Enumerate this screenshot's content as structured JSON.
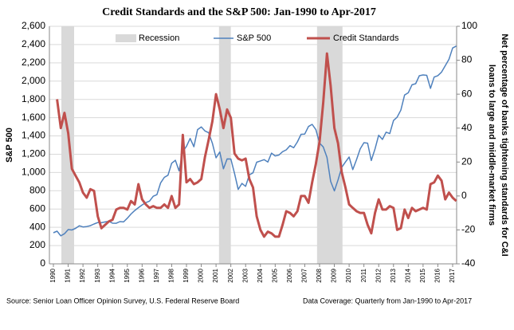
{
  "chart_data": {
    "type": "line",
    "title": "Credit Standards and the S&P 500: Jan-1990 to  Apr-2017",
    "y_label": "S&P 500",
    "y2_label": [
      "Net percentage of banks tightening standards for C&I",
      "loans to large and middle-market firms"
    ],
    "source": "Source: Senior Loan Officer Opinion Survey, U.S. Federal Reserve Board",
    "coverage": "Data Coverage: Quarterly from Jan-1990 to Apr-2017",
    "xlim": [
      1989.73,
      2017.27
    ],
    "xticks": [
      1990,
      1991,
      1992,
      1993,
      1994,
      1995,
      1996,
      1997,
      1998,
      1999,
      2000,
      2001,
      2002,
      2003,
      2004,
      2005,
      2006,
      2007,
      2008,
      2009,
      2010,
      2011,
      2012,
      2013,
      2014,
      2015,
      2016,
      2017
    ],
    "ylim": [
      0,
      2600
    ],
    "yticks": [
      0,
      200,
      400,
      600,
      800,
      {
        "value": 1000,
        "label": "1,000"
      },
      {
        "value": 1200,
        "label": "1,200"
      },
      {
        "value": 1400,
        "label": "1,400"
      },
      {
        "value": 1600,
        "label": "1,600"
      },
      {
        "value": 1800,
        "label": "1,800"
      },
      {
        "value": 2000,
        "label": "2,000"
      },
      {
        "value": 2200,
        "label": "2,200"
      },
      {
        "value": 2400,
        "label": "2,400"
      },
      {
        "value": 2600,
        "label": "2,600"
      }
    ],
    "y2lim": [
      -40,
      100
    ],
    "y2ticks": [
      -40,
      -20,
      0,
      20,
      40,
      60,
      80,
      100
    ],
    "grid": true,
    "legend": "top",
    "recession_name": "Recession",
    "recession_color": "#d9d9d9",
    "recessions": [
      [
        1990.54,
        1991.4
      ],
      [
        2001.2,
        2002.0
      ],
      [
        2007.83,
        2009.55
      ]
    ],
    "series": [
      {
        "name": "S&P 500",
        "color": "#4f81bd",
        "axis": "y",
        "width": 1.5,
        "x": [
          1990,
          1990.25,
          1990.5,
          1990.75,
          1991,
          1991.25,
          1991.5,
          1991.75,
          1992,
          1992.25,
          1992.5,
          1992.75,
          1993,
          1993.25,
          1993.5,
          1993.75,
          1994,
          1994.25,
          1994.5,
          1994.75,
          1995,
          1995.25,
          1995.5,
          1995.75,
          1996,
          1996.25,
          1996.5,
          1996.75,
          1997,
          1997.25,
          1997.5,
          1997.75,
          1998,
          1998.25,
          1998.5,
          1998.75,
          1999,
          1999.25,
          1999.5,
          1999.75,
          2000,
          2000.25,
          2000.5,
          2000.75,
          2001,
          2001.25,
          2001.5,
          2001.75,
          2002,
          2002.25,
          2002.5,
          2002.75,
          2003,
          2003.25,
          2003.5,
          2003.75,
          2004,
          2004.25,
          2004.5,
          2004.75,
          2005,
          2005.25,
          2005.5,
          2005.75,
          2006,
          2006.25,
          2006.5,
          2006.75,
          2007,
          2007.25,
          2007.5,
          2007.75,
          2008,
          2008.25,
          2008.5,
          2008.75,
          2009,
          2009.25,
          2009.5,
          2009.75,
          2010,
          2010.25,
          2010.5,
          2010.75,
          2011,
          2011.25,
          2011.5,
          2011.75,
          2012,
          2012.25,
          2012.5,
          2012.75,
          2013,
          2013.25,
          2013.5,
          2013.75,
          2014,
          2014.25,
          2014.5,
          2014.75,
          2015,
          2015.25,
          2015.5,
          2015.75,
          2016,
          2016.25,
          2016.5,
          2016.75,
          2017,
          2017.25
        ],
        "values": [
          340,
          358,
          306,
          330,
          375,
          371,
          388,
          417,
          404,
          408,
          418,
          436,
          452,
          450,
          459,
          466,
          445,
          444,
          462,
          459,
          500,
          545,
          584,
          615,
          645,
          670,
          687,
          740,
          757,
          885,
          947,
          970,
          1101,
          1133,
          1017,
          1229,
          1286,
          1372,
          1282,
          1469,
          1498,
          1454,
          1436,
          1320,
          1160,
          1224,
          1040,
          1148,
          1147,
          989,
          815,
          880,
          848,
          975,
          996,
          1112,
          1126,
          1140,
          1114,
          1212,
          1181,
          1191,
          1228,
          1248,
          1294,
          1270,
          1335,
          1418,
          1420,
          1503,
          1527,
          1468,
          1322,
          1280,
          1166,
          903,
          798,
          919,
          1057,
          1115,
          1169,
          1031,
          1141,
          1258,
          1326,
          1321,
          1131,
          1258,
          1408,
          1362,
          1441,
          1426,
          1569,
          1606,
          1682,
          1848,
          1872,
          1960,
          1972,
          2059,
          2068,
          2063,
          1920,
          2044,
          2060,
          2099,
          2168,
          2239,
          2363,
          2384
        ]
      },
      {
        "name": "Credit Standards",
        "color": "#c0504d",
        "axis": "y2",
        "width": 3,
        "x": [
          1990.25,
          1990.5,
          1990.75,
          1991,
          1991.25,
          1991.5,
          1991.75,
          1992,
          1992.25,
          1992.5,
          1992.75,
          1993,
          1993.25,
          1993.5,
          1993.75,
          1994,
          1994.25,
          1994.5,
          1994.75,
          1995,
          1995.25,
          1995.5,
          1995.75,
          1996,
          1996.25,
          1996.5,
          1996.75,
          1997,
          1997.25,
          1997.5,
          1997.75,
          1998,
          1998.25,
          1998.5,
          1998.75,
          1999,
          1999.25,
          1999.5,
          1999.75,
          2000,
          2000.25,
          2000.5,
          2000.75,
          2001,
          2001.25,
          2001.5,
          2001.75,
          2002,
          2002.25,
          2002.5,
          2002.75,
          2003,
          2003.25,
          2003.5,
          2003.75,
          2004,
          2004.25,
          2004.5,
          2004.75,
          2005,
          2005.25,
          2005.5,
          2005.75,
          2006,
          2006.25,
          2006.5,
          2006.75,
          2007,
          2007.25,
          2007.5,
          2007.75,
          2008,
          2008.25,
          2008.5,
          2008.75,
          2009,
          2009.25,
          2009.5,
          2009.75,
          2010,
          2010.25,
          2010.5,
          2010.75,
          2011,
          2011.25,
          2011.5,
          2011.75,
          2012,
          2012.25,
          2012.5,
          2012.75,
          2013,
          2013.25,
          2013.5,
          2013.75,
          2014,
          2014.25,
          2014.5,
          2014.75,
          2015,
          2015.25,
          2015.5,
          2015.75,
          2016,
          2016.25,
          2016.5,
          2016.75,
          2017,
          2017.25
        ],
        "values": [
          57,
          40,
          49,
          37,
          16,
          12,
          8,
          2,
          -1,
          4,
          3,
          -12,
          -19,
          -17,
          -15,
          -14,
          -8,
          -7,
          -7,
          -8,
          -3,
          -5,
          7,
          -2,
          -5,
          -7,
          -6,
          -7,
          -7,
          -5,
          -7,
          0,
          -7,
          -5,
          36,
          8,
          10,
          7,
          8,
          10,
          23,
          33,
          44,
          60,
          51,
          40,
          51,
          46,
          25,
          22,
          21,
          22,
          10,
          5,
          -12,
          -20,
          -24,
          -21,
          -22,
          -24,
          -24,
          -17,
          -9,
          -10,
          -12,
          -9,
          0,
          0,
          -4,
          8,
          19,
          32,
          55,
          84,
          65,
          40,
          31,
          14,
          5,
          -5,
          -7,
          -9,
          -10,
          -10,
          -17,
          -22,
          -10,
          -2,
          -8,
          -8,
          -6,
          -7,
          -20,
          -19,
          -8,
          -13,
          -7,
          -9,
          -8,
          -7,
          -8,
          7,
          8,
          12,
          9,
          -2,
          2,
          -1,
          -3
        ]
      }
    ]
  }
}
